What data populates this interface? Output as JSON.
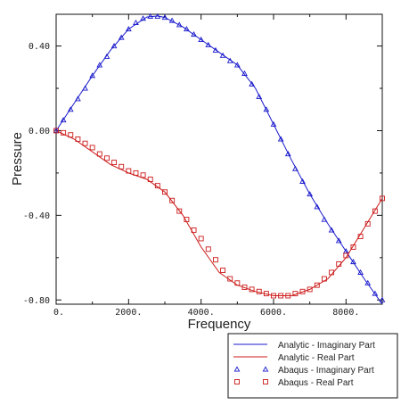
{
  "chart_data": {
    "type": "line",
    "xlabel": "Frequency",
    "ylabel": "Pressure",
    "xlim": [
      0,
      9000
    ],
    "ylim": [
      -0.82,
      0.55
    ],
    "x_ticks": [
      0,
      2000,
      4000,
      6000,
      8000
    ],
    "x_tick_labels": [
      "0.",
      "2000.",
      "4000.",
      "6000.",
      "8000."
    ],
    "y_ticks": [
      0.4,
      0.0,
      -0.4,
      -0.8
    ],
    "y_tick_labels": [
      "0.40",
      "0.00",
      "-0.40",
      "-0.80"
    ],
    "grid": false,
    "legend_position": "bottom-right, outside plot",
    "legend": [
      "Analytic - Imaginary Part",
      "Analytic - Real Part",
      "Abaqus - Imaginary Part",
      "Abaqus - Real Part"
    ],
    "series": [
      {
        "name": "Analytic - Imaginary Part",
        "style": "line",
        "color": "#1a1acc",
        "x": [
          0,
          500,
          1000,
          1500,
          2000,
          2500,
          2800,
          3000,
          3500,
          4000,
          4500,
          5000,
          5500,
          6000,
          6500,
          7000,
          7500,
          8000,
          8500,
          9000
        ],
        "y": [
          0.0,
          0.13,
          0.26,
          0.38,
          0.48,
          0.537,
          0.542,
          0.535,
          0.49,
          0.43,
          0.37,
          0.31,
          0.2,
          0.03,
          -0.14,
          -0.3,
          -0.44,
          -0.57,
          -0.7,
          -0.82
        ]
      },
      {
        "name": "Analytic - Real Part",
        "style": "line",
        "color": "#cc1a1a",
        "x": [
          0,
          500,
          1000,
          1500,
          2000,
          2500,
          3000,
          3500,
          4000,
          4500,
          5000,
          5500,
          6000,
          6500,
          7000,
          7500,
          8000,
          8500,
          9000
        ],
        "y": [
          0.0,
          -0.04,
          -0.1,
          -0.16,
          -0.2,
          -0.23,
          -0.29,
          -0.4,
          -0.55,
          -0.67,
          -0.73,
          -0.76,
          -0.78,
          -0.78,
          -0.75,
          -0.7,
          -0.6,
          -0.46,
          -0.32
        ]
      },
      {
        "name": "Abaqus - Imaginary Part",
        "style": "markers",
        "marker": "triangle",
        "color": "#1a1acc",
        "x": [
          0,
          200,
          400,
          600,
          800,
          1000,
          1200,
          1400,
          1600,
          1800,
          2000,
          2200,
          2400,
          2600,
          2800,
          3000,
          3200,
          3400,
          3600,
          3800,
          4000,
          4200,
          4400,
          4600,
          4800,
          5000,
          5200,
          5400,
          5600,
          5800,
          6000,
          6200,
          6400,
          6600,
          6800,
          7000,
          7200,
          7400,
          7600,
          7800,
          8000,
          8200,
          8400,
          8600,
          8800,
          9000
        ],
        "y": [
          0.0,
          0.05,
          0.1,
          0.15,
          0.2,
          0.26,
          0.31,
          0.35,
          0.4,
          0.44,
          0.48,
          0.51,
          0.53,
          0.54,
          0.54,
          0.535,
          0.52,
          0.5,
          0.48,
          0.455,
          0.43,
          0.405,
          0.38,
          0.355,
          0.33,
          0.31,
          0.27,
          0.22,
          0.16,
          0.1,
          0.03,
          -0.04,
          -0.11,
          -0.18,
          -0.24,
          -0.3,
          -0.36,
          -0.42,
          -0.47,
          -0.52,
          -0.57,
          -0.62,
          -0.67,
          -0.72,
          -0.77,
          -0.8
        ]
      },
      {
        "name": "Abaqus - Real Part",
        "style": "markers",
        "marker": "square",
        "color": "#cc1a1a",
        "x": [
          0,
          200,
          400,
          600,
          800,
          1000,
          1200,
          1400,
          1600,
          1800,
          2000,
          2200,
          2400,
          2600,
          2800,
          3000,
          3200,
          3400,
          3600,
          3800,
          4000,
          4200,
          4400,
          4600,
          4800,
          5000,
          5200,
          5400,
          5600,
          5800,
          6000,
          6200,
          6400,
          6600,
          6800,
          7000,
          7200,
          7400,
          7600,
          7800,
          8000,
          8200,
          8400,
          8600,
          8800,
          9000
        ],
        "y": [
          0.0,
          -0.01,
          -0.02,
          -0.04,
          -0.06,
          -0.08,
          -0.11,
          -0.13,
          -0.15,
          -0.17,
          -0.19,
          -0.2,
          -0.21,
          -0.23,
          -0.26,
          -0.29,
          -0.33,
          -0.38,
          -0.42,
          -0.47,
          -0.51,
          -0.56,
          -0.61,
          -0.66,
          -0.7,
          -0.72,
          -0.74,
          -0.75,
          -0.76,
          -0.77,
          -0.78,
          -0.78,
          -0.78,
          -0.77,
          -0.76,
          -0.75,
          -0.73,
          -0.7,
          -0.67,
          -0.63,
          -0.59,
          -0.55,
          -0.5,
          -0.44,
          -0.38,
          -0.32
        ]
      }
    ]
  }
}
